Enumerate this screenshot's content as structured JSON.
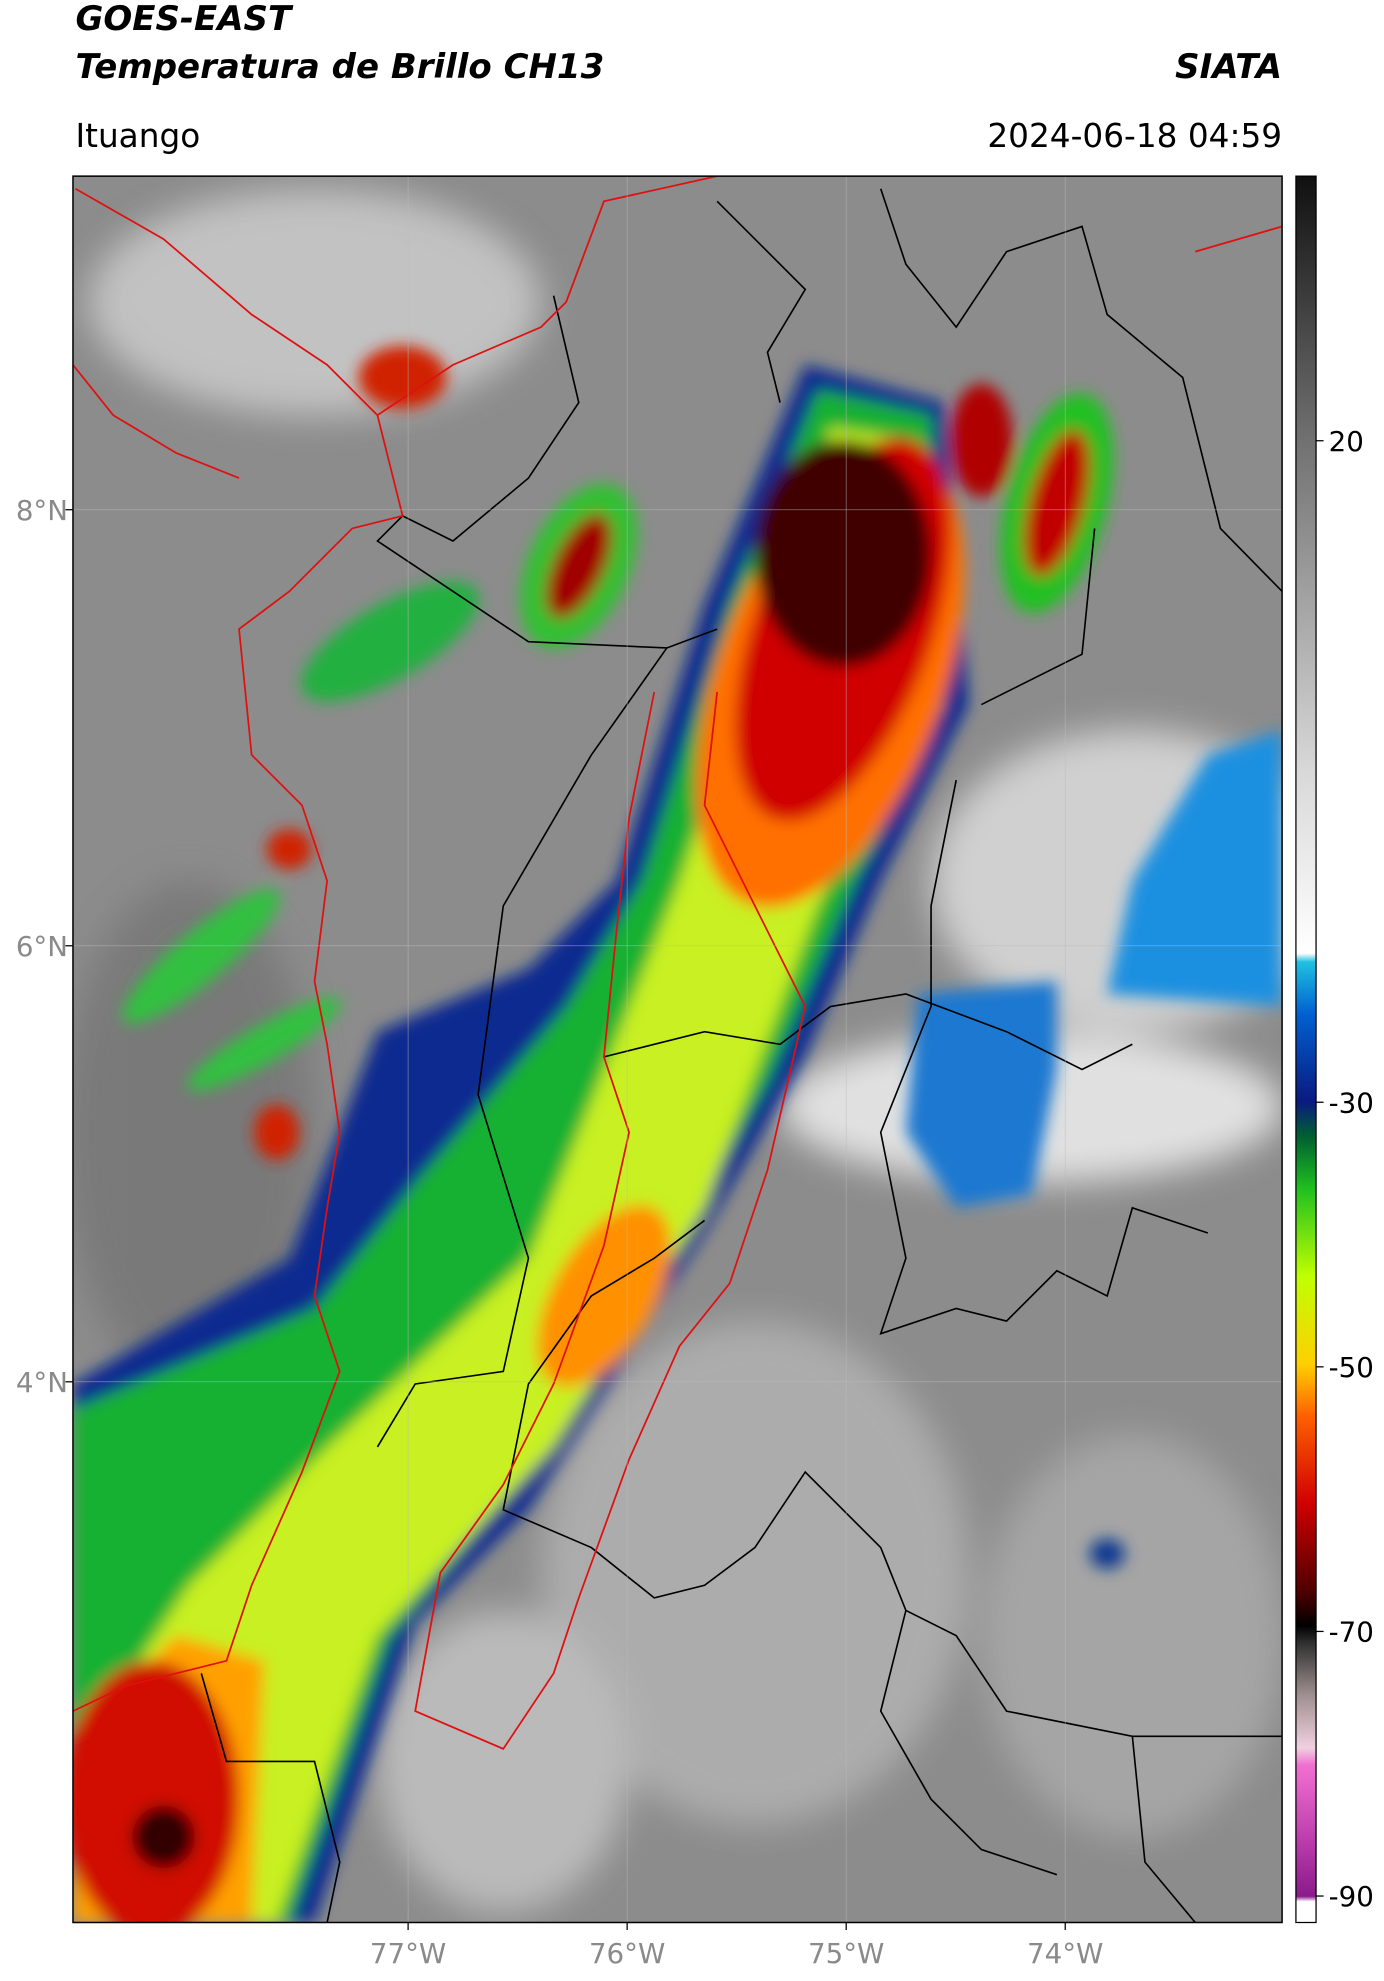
{
  "header": {
    "title": "GOES-EAST",
    "subtitle": "Temperatura de Brillo CH13",
    "brand": "SIATA",
    "location": "Ituango",
    "datetime": "2024-06-18 04:59"
  },
  "map": {
    "xlim": [
      -78.53,
      -73.01
    ],
    "ylim": [
      1.52,
      9.53
    ],
    "xticks": [
      {
        "value": -77,
        "label": "77°W"
      },
      {
        "value": -76,
        "label": "76°W"
      },
      {
        "value": -75,
        "label": "75°W"
      },
      {
        "value": -74,
        "label": "74°W"
      }
    ],
    "yticks": [
      {
        "value": 8,
        "label": "8°N"
      },
      {
        "value": 6,
        "label": "6°N"
      },
      {
        "value": 4,
        "label": "4°N"
      }
    ],
    "grid": true
  },
  "colorbar": {
    "lim": [
      -92,
      40
    ],
    "ticks": [
      20,
      -30,
      -50,
      -70,
      -90
    ]
  }
}
